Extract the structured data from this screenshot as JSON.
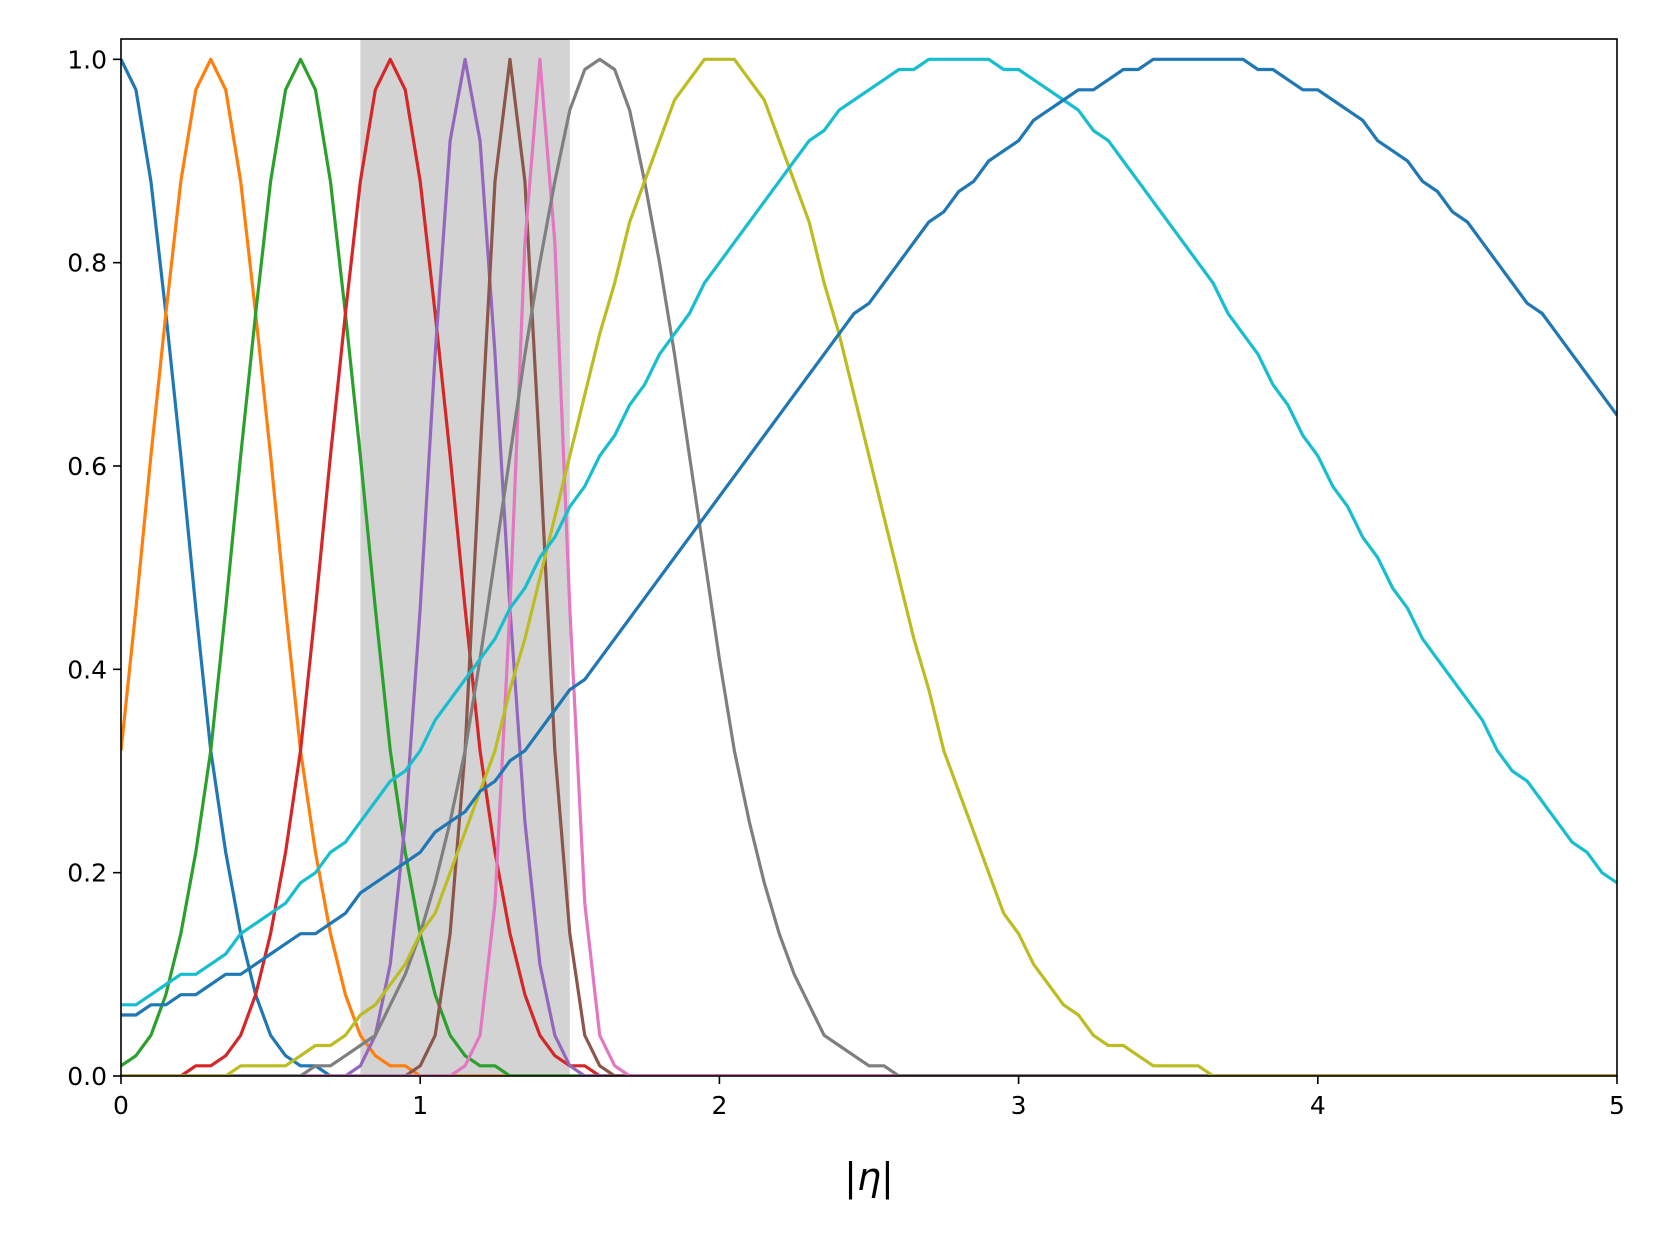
{
  "chart_data": {
    "type": "line",
    "xlabel": "|η|",
    "x": [
      0,
      0.05,
      0.1,
      0.15,
      0.2,
      0.25,
      0.3,
      0.35,
      0.4,
      0.45,
      0.5,
      0.55,
      0.6,
      0.65,
      0.7,
      0.75,
      0.8,
      0.85,
      0.9,
      0.95,
      1,
      1.05,
      1.1,
      1.15,
      1.2,
      1.25,
      1.3,
      1.35,
      1.4,
      1.45,
      1.5,
      1.55,
      1.6,
      1.65,
      1.7,
      1.75,
      1.8,
      1.85,
      1.9,
      1.95,
      2,
      2.05,
      2.1,
      2.15,
      2.2,
      2.25,
      2.3,
      2.35,
      2.4,
      2.45,
      2.5,
      2.55,
      2.6,
      2.65,
      2.7,
      2.75,
      2.8,
      2.85,
      2.9,
      2.95,
      3,
      3.05,
      3.1,
      3.15,
      3.2,
      3.25,
      3.3,
      3.35,
      3.4,
      3.45,
      3.5,
      3.55,
      3.6,
      3.65,
      3.7,
      3.75,
      3.8,
      3.85,
      3.9,
      3.95,
      4,
      4.05,
      4.1,
      4.15,
      4.2,
      4.25,
      4.3,
      4.35,
      4.4,
      4.45,
      4.5,
      4.55,
      4.6,
      4.65,
      4.7,
      4.75,
      4.8,
      4.85,
      4.9,
      4.95,
      5
    ],
    "series": [
      {
        "color": "#1f77b4",
        "values": [
          1,
          0.97,
          0.88,
          0.75,
          0.61,
          0.46,
          0.32,
          0.22,
          0.14,
          0.08,
          0.04,
          0.02,
          0.01,
          0.01,
          0,
          0,
          0,
          0,
          0,
          0,
          0,
          0,
          0,
          0,
          0,
          0,
          0,
          0,
          0,
          0,
          0,
          0,
          0,
          0,
          0,
          0,
          0,
          0,
          0,
          0,
          0,
          0,
          0,
          0,
          0,
          0,
          0,
          0,
          0,
          0,
          0,
          0,
          0,
          0,
          0,
          0,
          0,
          0,
          0,
          0,
          0,
          0,
          0,
          0,
          0,
          0,
          0,
          0,
          0,
          0,
          0,
          0,
          0,
          0,
          0,
          0,
          0,
          0,
          0,
          0,
          0,
          0,
          0,
          0,
          0,
          0,
          0,
          0,
          0,
          0,
          0,
          0,
          0,
          0,
          0,
          0,
          0,
          0,
          0,
          0,
          0
        ]
      },
      {
        "color": "#ff7f0e",
        "values": [
          0.32,
          0.46,
          0.61,
          0.75,
          0.88,
          0.97,
          1,
          0.97,
          0.88,
          0.75,
          0.61,
          0.46,
          0.32,
          0.22,
          0.14,
          0.08,
          0.04,
          0.02,
          0.01,
          0.01,
          0,
          0,
          0,
          0,
          0,
          0,
          0,
          0,
          0,
          0,
          0,
          0,
          0,
          0,
          0,
          0,
          0,
          0,
          0,
          0,
          0,
          0,
          0,
          0,
          0,
          0,
          0,
          0,
          0,
          0,
          0,
          0,
          0,
          0,
          0,
          0,
          0,
          0,
          0,
          0,
          0,
          0,
          0,
          0,
          0,
          0,
          0,
          0,
          0,
          0,
          0,
          0,
          0,
          0,
          0,
          0,
          0,
          0,
          0,
          0,
          0,
          0,
          0,
          0,
          0,
          0,
          0,
          0,
          0,
          0,
          0,
          0,
          0,
          0,
          0,
          0,
          0,
          0,
          0,
          0,
          0
        ]
      },
      {
        "color": "#2ca02c",
        "values": [
          0.01,
          0.02,
          0.04,
          0.08,
          0.14,
          0.22,
          0.32,
          0.46,
          0.61,
          0.75,
          0.88,
          0.97,
          1,
          0.97,
          0.88,
          0.75,
          0.61,
          0.46,
          0.32,
          0.22,
          0.14,
          0.08,
          0.04,
          0.02,
          0.01,
          0.01,
          0,
          0,
          0,
          0,
          0,
          0,
          0,
          0,
          0,
          0,
          0,
          0,
          0,
          0,
          0,
          0,
          0,
          0,
          0,
          0,
          0,
          0,
          0,
          0,
          0,
          0,
          0,
          0,
          0,
          0,
          0,
          0,
          0,
          0,
          0,
          0,
          0,
          0,
          0,
          0,
          0,
          0,
          0,
          0,
          0,
          0,
          0,
          0,
          0,
          0,
          0,
          0,
          0,
          0,
          0,
          0,
          0,
          0,
          0,
          0,
          0,
          0,
          0,
          0,
          0,
          0,
          0,
          0,
          0,
          0,
          0,
          0,
          0,
          0,
          0
        ]
      },
      {
        "color": "#d62728",
        "values": [
          0,
          0,
          0,
          0,
          0,
          0.01,
          0.01,
          0.02,
          0.04,
          0.08,
          0.14,
          0.22,
          0.32,
          0.46,
          0.61,
          0.75,
          0.88,
          0.97,
          1,
          0.97,
          0.88,
          0.75,
          0.61,
          0.46,
          0.32,
          0.22,
          0.14,
          0.08,
          0.04,
          0.02,
          0.01,
          0.01,
          0,
          0,
          0,
          0,
          0,
          0,
          0,
          0,
          0,
          0,
          0,
          0,
          0,
          0,
          0,
          0,
          0,
          0,
          0,
          0,
          0,
          0,
          0,
          0,
          0,
          0,
          0,
          0,
          0,
          0,
          0,
          0,
          0,
          0,
          0,
          0,
          0,
          0,
          0,
          0,
          0,
          0,
          0,
          0,
          0,
          0,
          0,
          0,
          0,
          0,
          0,
          0,
          0,
          0,
          0,
          0,
          0,
          0,
          0,
          0,
          0,
          0,
          0,
          0,
          0,
          0,
          0,
          0,
          0
        ]
      },
      {
        "color": "#9467bd",
        "values": [
          0,
          0,
          0,
          0,
          0,
          0,
          0,
          0,
          0,
          0,
          0,
          0,
          0,
          0,
          0,
          0,
          0.01,
          0.04,
          0.11,
          0.25,
          0.46,
          0.71,
          0.92,
          1,
          0.92,
          0.71,
          0.46,
          0.25,
          0.11,
          0.04,
          0.01,
          0,
          0,
          0,
          0,
          0,
          0,
          0,
          0,
          0,
          0,
          0,
          0,
          0,
          0,
          0,
          0,
          0,
          0,
          0,
          0,
          0,
          0,
          0,
          0,
          0,
          0,
          0,
          0,
          0,
          0,
          0,
          0,
          0,
          0,
          0,
          0,
          0,
          0,
          0,
          0,
          0,
          0,
          0,
          0,
          0,
          0,
          0,
          0,
          0,
          0,
          0,
          0,
          0,
          0,
          0,
          0,
          0,
          0,
          0,
          0,
          0,
          0,
          0,
          0,
          0,
          0,
          0,
          0,
          0,
          0
        ]
      },
      {
        "color": "#8c564b",
        "values": [
          0,
          0,
          0,
          0,
          0,
          0,
          0,
          0,
          0,
          0,
          0,
          0,
          0,
          0,
          0,
          0,
          0,
          0,
          0,
          0,
          0.01,
          0.04,
          0.14,
          0.32,
          0.61,
          0.88,
          1,
          0.88,
          0.61,
          0.32,
          0.14,
          0.04,
          0.01,
          0,
          0,
          0,
          0,
          0,
          0,
          0,
          0,
          0,
          0,
          0,
          0,
          0,
          0,
          0,
          0,
          0,
          0,
          0,
          0,
          0,
          0,
          0,
          0,
          0,
          0,
          0,
          0,
          0,
          0,
          0,
          0,
          0,
          0,
          0,
          0,
          0,
          0,
          0,
          0,
          0,
          0,
          0,
          0,
          0,
          0,
          0,
          0,
          0,
          0,
          0,
          0,
          0,
          0,
          0,
          0,
          0,
          0,
          0,
          0,
          0,
          0,
          0,
          0,
          0,
          0,
          0,
          0
        ]
      },
      {
        "color": "#e377c2",
        "values": [
          0,
          0,
          0,
          0,
          0,
          0,
          0,
          0,
          0,
          0,
          0,
          0,
          0,
          0,
          0,
          0,
          0,
          0,
          0,
          0,
          0,
          0,
          0,
          0.01,
          0.04,
          0.17,
          0.46,
          0.82,
          1,
          0.82,
          0.46,
          0.17,
          0.04,
          0.01,
          0,
          0,
          0,
          0,
          0,
          0,
          0,
          0,
          0,
          0,
          0,
          0,
          0,
          0,
          0,
          0,
          0,
          0,
          0,
          0,
          0,
          0,
          0,
          0,
          0,
          0,
          0,
          0,
          0,
          0,
          0,
          0,
          0,
          0,
          0,
          0,
          0,
          0,
          0,
          0,
          0,
          0,
          0,
          0,
          0,
          0,
          0,
          0,
          0,
          0,
          0,
          0,
          0,
          0,
          0,
          0,
          0,
          0,
          0,
          0,
          0,
          0,
          0,
          0,
          0,
          0,
          0
        ]
      },
      {
        "color": "#7f7f7f",
        "values": [
          0,
          0,
          0,
          0,
          0,
          0,
          0,
          0,
          0,
          0,
          0,
          0,
          0,
          0.01,
          0.01,
          0.02,
          0.03,
          0.04,
          0.07,
          0.1,
          0.14,
          0.19,
          0.25,
          0.32,
          0.41,
          0.51,
          0.61,
          0.71,
          0.8,
          0.88,
          0.95,
          0.99,
          1,
          0.99,
          0.95,
          0.88,
          0.8,
          0.71,
          0.61,
          0.51,
          0.41,
          0.32,
          0.25,
          0.19,
          0.14,
          0.1,
          0.07,
          0.04,
          0.03,
          0.02,
          0.01,
          0.01,
          0,
          0,
          0,
          0,
          0,
          0,
          0,
          0,
          0,
          0,
          0,
          0,
          0,
          0,
          0,
          0,
          0,
          0,
          0,
          0,
          0,
          0,
          0,
          0,
          0,
          0,
          0,
          0,
          0,
          0,
          0,
          0,
          0,
          0,
          0,
          0,
          0,
          0,
          0,
          0,
          0,
          0,
          0,
          0,
          0,
          0,
          0,
          0,
          0
        ]
      },
      {
        "color": "#bcbd22",
        "values": [
          0,
          0,
          0,
          0,
          0,
          0,
          0,
          0,
          0.01,
          0.01,
          0.01,
          0.01,
          0.02,
          0.03,
          0.03,
          0.04,
          0.06,
          0.07,
          0.09,
          0.11,
          0.14,
          0.16,
          0.2,
          0.24,
          0.28,
          0.32,
          0.38,
          0.43,
          0.49,
          0.55,
          0.61,
          0.67,
          0.73,
          0.78,
          0.84,
          0.88,
          0.92,
          0.96,
          0.98,
          1,
          1,
          1,
          0.98,
          0.96,
          0.92,
          0.88,
          0.84,
          0.78,
          0.73,
          0.67,
          0.61,
          0.55,
          0.49,
          0.43,
          0.38,
          0.32,
          0.28,
          0.24,
          0.2,
          0.16,
          0.14,
          0.11,
          0.09,
          0.07,
          0.06,
          0.04,
          0.03,
          0.03,
          0.02,
          0.01,
          0.01,
          0.01,
          0.01,
          0,
          0,
          0,
          0,
          0,
          0,
          0,
          0,
          0,
          0,
          0,
          0,
          0,
          0,
          0,
          0,
          0,
          0,
          0,
          0,
          0,
          0,
          0,
          0,
          0,
          0,
          0,
          0
        ]
      },
      {
        "color": "#17becf",
        "values": [
          0.07,
          0.07,
          0.08,
          0.09,
          0.1,
          0.1,
          0.11,
          0.12,
          0.14,
          0.15,
          0.16,
          0.17,
          0.19,
          0.2,
          0.22,
          0.23,
          0.25,
          0.27,
          0.29,
          0.3,
          0.32,
          0.35,
          0.37,
          0.39,
          0.41,
          0.43,
          0.46,
          0.48,
          0.51,
          0.53,
          0.56,
          0.58,
          0.61,
          0.63,
          0.66,
          0.68,
          0.71,
          0.73,
          0.75,
          0.78,
          0.8,
          0.82,
          0.84,
          0.86,
          0.88,
          0.9,
          0.92,
          0.93,
          0.95,
          0.96,
          0.97,
          0.98,
          0.99,
          0.99,
          1,
          1,
          1,
          1,
          1,
          0.99,
          0.99,
          0.98,
          0.97,
          0.96,
          0.95,
          0.93,
          0.92,
          0.9,
          0.88,
          0.86,
          0.84,
          0.82,
          0.8,
          0.78,
          0.75,
          0.73,
          0.71,
          0.68,
          0.66,
          0.63,
          0.61,
          0.58,
          0.56,
          0.53,
          0.51,
          0.48,
          0.46,
          0.43,
          0.41,
          0.39,
          0.37,
          0.35,
          0.32,
          0.3,
          0.29,
          0.27,
          0.25,
          0.23,
          0.22,
          0.2,
          0.19
        ]
      },
      {
        "color": "#1f77b4",
        "values": [
          0.06,
          0.06,
          0.07,
          0.07,
          0.08,
          0.08,
          0.09,
          0.1,
          0.1,
          0.11,
          0.12,
          0.13,
          0.14,
          0.14,
          0.15,
          0.16,
          0.18,
          0.19,
          0.2,
          0.21,
          0.22,
          0.24,
          0.25,
          0.26,
          0.28,
          0.29,
          0.31,
          0.32,
          0.34,
          0.36,
          0.38,
          0.39,
          0.41,
          0.43,
          0.45,
          0.47,
          0.49,
          0.51,
          0.53,
          0.55,
          0.57,
          0.59,
          0.61,
          0.63,
          0.65,
          0.67,
          0.69,
          0.71,
          0.73,
          0.75,
          0.76,
          0.78,
          0.8,
          0.82,
          0.84,
          0.85,
          0.87,
          0.88,
          0.9,
          0.91,
          0.92,
          0.94,
          0.95,
          0.96,
          0.97,
          0.97,
          0.98,
          0.99,
          0.99,
          1,
          1,
          1,
          1,
          1,
          1,
          1,
          0.99,
          0.99,
          0.98,
          0.97,
          0.97,
          0.96,
          0.95,
          0.94,
          0.92,
          0.91,
          0.9,
          0.88,
          0.87,
          0.85,
          0.84,
          0.82,
          0.8,
          0.78,
          0.76,
          0.75,
          0.73,
          0.71,
          0.69,
          0.67,
          0.65
        ]
      }
    ],
    "spans": [
      {
        "x0": 0.8,
        "x1": 1.5,
        "color": "#d3d3d3"
      }
    ],
    "xlim": [
      0,
      5
    ],
    "xticks": [
      0,
      1,
      2,
      3,
      4,
      5
    ],
    "ylim": [
      0,
      1.02
    ],
    "yticks": [
      {
        "value": 0,
        "label": "0.0"
      },
      {
        "value": 0.2,
        "label": "0.2"
      },
      {
        "value": 0.4,
        "label": "0.4"
      },
      {
        "value": 0.6,
        "label": "0.6"
      },
      {
        "value": 0.8,
        "label": "0.8"
      },
      {
        "value": 1,
        "label": "1.0"
      }
    ]
  }
}
